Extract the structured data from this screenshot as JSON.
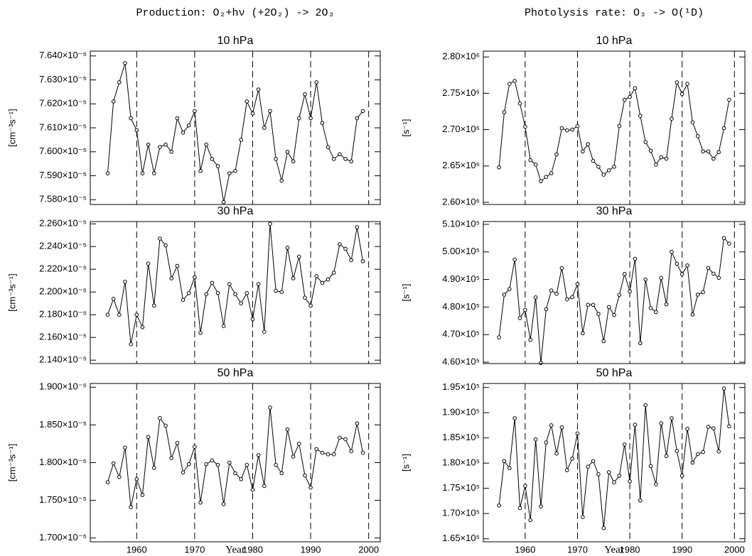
{
  "figure_titles": [
    "Production: O₂+hν (+2O₂) -> 2O₃",
    "Photolysis rate: O₃ -> O(¹D)"
  ],
  "chart_data": [
    {
      "type": "line",
      "title": "10 hPa",
      "ylabel": "[cm⁻³s⁻¹]",
      "color": "#000000",
      "grid": "dashed",
      "x": [
        1955,
        1956,
        1957,
        1958,
        1959,
        1960,
        1961,
        1962,
        1963,
        1964,
        1965,
        1966,
        1967,
        1968,
        1969,
        1970,
        1971,
        1972,
        1973,
        1974,
        1975,
        1976,
        1977,
        1978,
        1979,
        1980,
        1981,
        1982,
        1983,
        1984,
        1985,
        1986,
        1987,
        1988,
        1989,
        1990,
        1991,
        1992,
        1993,
        1994,
        1995,
        1996,
        1997,
        1998,
        1999
      ],
      "values": [
        7.591e-05,
        7.621e-05,
        7.629e-05,
        7.637e-05,
        7.614e-05,
        7.609e-05,
        7.591e-05,
        7.603e-05,
        7.591e-05,
        7.602e-05,
        7.603e-05,
        7.6e-05,
        7.614e-05,
        7.608e-05,
        7.611e-05,
        7.617e-05,
        7.592e-05,
        7.603e-05,
        7.597e-05,
        7.594e-05,
        7.579e-05,
        7.591e-05,
        7.592e-05,
        7.605e-05,
        7.621e-05,
        7.616e-05,
        7.626e-05,
        7.61e-05,
        7.617e-05,
        7.597e-05,
        7.588e-05,
        7.6e-05,
        7.596e-05,
        7.614e-05,
        7.624e-05,
        7.614e-05,
        7.629e-05,
        7.612e-05,
        7.602e-05,
        7.597e-05,
        7.599e-05,
        7.597e-05,
        7.596e-05,
        7.614e-05,
        7.617e-05
      ],
      "xlim": [
        1952,
        2002
      ],
      "xticks": [
        1960,
        1970,
        1980,
        1990,
        2000
      ],
      "ylim": [
        7.578e-05,
        7.642e-05
      ],
      "yticks": [
        {
          "value": 7.58e-05,
          "label": "7.580×10⁻⁵"
        },
        {
          "value": 7.59e-05,
          "label": "7.590×10⁻⁵"
        },
        {
          "value": 7.6e-05,
          "label": "7.600×10⁻⁵"
        },
        {
          "value": 7.61e-05,
          "label": "7.610×10⁻⁵"
        },
        {
          "value": 7.62e-05,
          "label": "7.620×10⁻⁵"
        },
        {
          "value": 7.63e-05,
          "label": "7.630×10⁻⁵"
        },
        {
          "value": 7.64e-05,
          "label": "7.640×10⁻⁵"
        }
      ]
    },
    {
      "type": "line",
      "title": "10 hPa",
      "ylabel": "[s⁻¹]",
      "color": "#000000",
      "grid": "dashed",
      "x": [
        1955,
        1956,
        1957,
        1958,
        1959,
        1960,
        1961,
        1962,
        1963,
        1964,
        1965,
        1966,
        1967,
        1968,
        1969,
        1970,
        1971,
        1972,
        1973,
        1974,
        1975,
        1976,
        1977,
        1978,
        1979,
        1980,
        1981,
        1982,
        1983,
        1984,
        1985,
        1986,
        1987,
        1988,
        1989,
        1990,
        1991,
        1992,
        1993,
        1994,
        1995,
        1996,
        1997,
        1998,
        1999
      ],
      "values": [
        2648000.0,
        2724000.0,
        2763000.0,
        2767000.0,
        2736000.0,
        2704000.0,
        2658000.0,
        2652000.0,
        2629000.0,
        2635000.0,
        2640000.0,
        2666000.0,
        2702000.0,
        2699000.0,
        2700000.0,
        2705000.0,
        2670000.0,
        2680000.0,
        2657000.0,
        2649000.0,
        2638000.0,
        2644000.0,
        2649000.0,
        2705000.0,
        2741000.0,
        2745000.0,
        2757000.0,
        2719000.0,
        2683000.0,
        2671000.0,
        2652000.0,
        2662000.0,
        2660000.0,
        2715000.0,
        2765000.0,
        2749000.0,
        2763000.0,
        2710000.0,
        2691000.0,
        2670000.0,
        2670000.0,
        2660000.0,
        2669000.0,
        2702000.0,
        2741000.0
      ],
      "xlim": [
        1952,
        2002
      ],
      "xticks": [
        1960,
        1970,
        1980,
        1990,
        2000
      ],
      "ylim": [
        2597000.0,
        2808000.0
      ],
      "yticks": [
        {
          "value": 2600000.0,
          "label": "2.60×10⁶"
        },
        {
          "value": 2650000.0,
          "label": "2.65×10⁶"
        },
        {
          "value": 2700000.0,
          "label": "2.70×10⁶"
        },
        {
          "value": 2750000.0,
          "label": "2.75×10⁶"
        },
        {
          "value": 2800000.0,
          "label": "2.80×10⁶"
        }
      ]
    },
    {
      "type": "line",
      "title": "30 hPa",
      "ylabel": "[cm⁻³s⁻¹]",
      "color": "#000000",
      "grid": "dashed",
      "x": [
        1955,
        1956,
        1957,
        1958,
        1959,
        1960,
        1961,
        1962,
        1963,
        1964,
        1965,
        1966,
        1967,
        1968,
        1969,
        1970,
        1971,
        1972,
        1973,
        1974,
        1975,
        1976,
        1977,
        1978,
        1979,
        1980,
        1981,
        1982,
        1983,
        1984,
        1985,
        1986,
        1987,
        1988,
        1989,
        1990,
        1991,
        1992,
        1993,
        1994,
        1995,
        1996,
        1997,
        1998,
        1999
      ],
      "values": [
        2.18e-05,
        2.194e-05,
        2.18e-05,
        2.209e-05,
        2.154e-05,
        2.18e-05,
        2.169e-05,
        2.225e-05,
        2.188e-05,
        2.247e-05,
        2.241e-05,
        2.212e-05,
        2.223e-05,
        2.193e-05,
        2.199e-05,
        2.213e-05,
        2.164e-05,
        2.198e-05,
        2.208e-05,
        2.199e-05,
        2.17e-05,
        2.207e-05,
        2.198e-05,
        2.19e-05,
        2.199e-05,
        2.176e-05,
        2.207e-05,
        2.165e-05,
        2.26e-05,
        2.201e-05,
        2.2e-05,
        2.239e-05,
        2.212e-05,
        2.231e-05,
        2.195e-05,
        2.188e-05,
        2.214e-05,
        2.208e-05,
        2.211e-05,
        2.217e-05,
        2.242e-05,
        2.238e-05,
        2.228e-05,
        2.257e-05,
        2.227e-05
      ],
      "xlim": [
        1952,
        2002
      ],
      "xticks": [
        1960,
        1970,
        1980,
        1990,
        2000
      ],
      "ylim": [
        2.137e-05,
        2.262e-05
      ],
      "yticks": [
        {
          "value": 2.14e-05,
          "label": "2.140×10⁻⁵"
        },
        {
          "value": 2.16e-05,
          "label": "2.160×10⁻⁵"
        },
        {
          "value": 2.18e-05,
          "label": "2.180×10⁻⁵"
        },
        {
          "value": 2.2e-05,
          "label": "2.200×10⁻⁵"
        },
        {
          "value": 2.22e-05,
          "label": "2.220×10⁻⁵"
        },
        {
          "value": 2.24e-05,
          "label": "2.240×10⁻⁵"
        },
        {
          "value": 2.26e-05,
          "label": "2.260×10⁻⁵"
        }
      ]
    },
    {
      "type": "line",
      "title": "30 hPa",
      "ylabel": "[s⁻¹]",
      "color": "#000000",
      "grid": "dashed",
      "x": [
        1955,
        1956,
        1957,
        1958,
        1959,
        1960,
        1961,
        1962,
        1963,
        1964,
        1965,
        1966,
        1967,
        1968,
        1969,
        1970,
        1971,
        1972,
        1973,
        1974,
        1975,
        1976,
        1977,
        1978,
        1979,
        1980,
        1981,
        1982,
        1983,
        1984,
        1985,
        1986,
        1987,
        1988,
        1989,
        1990,
        1991,
        1992,
        1993,
        1994,
        1995,
        1996,
        1997,
        1998,
        1999
      ],
      "values": [
        469000.0,
        484500.0,
        486500.0,
        497200.0,
        476000.0,
        478900.0,
        468100.0,
        483500.0,
        459700.0,
        479200.0,
        486000.0,
        484800.0,
        494100.0,
        482800.0,
        483600.0,
        488300.0,
        470500.0,
        480800.0,
        480800.0,
        477500.0,
        467600.0,
        480000.0,
        477100.0,
        484400.0,
        492000.0,
        485600.0,
        497500.0,
        466900.0,
        490000.0,
        479600.0,
        478200.0,
        490500.0,
        481000.0,
        500000.0,
        495700.0,
        491900.0,
        495100.0,
        477300.0,
        484500.0,
        485400.0,
        494200.0,
        492100.0,
        490600.0,
        505000.0,
        503000.0
      ],
      "xlim": [
        1952,
        2002
      ],
      "xticks": [
        1960,
        1970,
        1980,
        1990,
        2000
      ],
      "ylim": [
        459500.0,
        511000.0
      ],
      "yticks": [
        {
          "value": 460000.0,
          "label": "4.60×10⁵"
        },
        {
          "value": 470000.0,
          "label": "4.70×10⁵"
        },
        {
          "value": 480000.0,
          "label": "4.80×10⁵"
        },
        {
          "value": 490000.0,
          "label": "4.90×10⁵"
        },
        {
          "value": 500000.0,
          "label": "5.00×10⁵"
        },
        {
          "value": 510000.0,
          "label": "5.10×10⁵"
        }
      ]
    },
    {
      "type": "line",
      "title": "50 hPa",
      "ylabel": "[cm⁻³s⁻¹]",
      "xlabel": "Year",
      "color": "#000000",
      "grid": "dashed",
      "x": [
        1955,
        1956,
        1957,
        1958,
        1959,
        1960,
        1961,
        1962,
        1963,
        1964,
        1965,
        1966,
        1967,
        1968,
        1969,
        1970,
        1971,
        1972,
        1973,
        1974,
        1975,
        1976,
        1977,
        1978,
        1979,
        1980,
        1981,
        1982,
        1983,
        1984,
        1985,
        1986,
        1987,
        1988,
        1989,
        1990,
        1991,
        1992,
        1993,
        1994,
        1995,
        1996,
        1997,
        1998,
        1999
      ],
      "values": [
        1.774e-05,
        1.799e-05,
        1.781e-05,
        1.82e-05,
        1.741e-05,
        1.778e-05,
        1.757e-05,
        1.834e-05,
        1.793e-05,
        1.859e-05,
        1.849e-05,
        1.806e-05,
        1.826e-05,
        1.787e-05,
        1.798e-05,
        1.821e-05,
        1.747e-05,
        1.798e-05,
        1.803e-05,
        1.797e-05,
        1.745e-05,
        1.8e-05,
        1.786e-05,
        1.778e-05,
        1.797e-05,
        1.764e-05,
        1.81e-05,
        1.769e-05,
        1.873e-05,
        1.797e-05,
        1.786e-05,
        1.844e-05,
        1.808e-05,
        1.825e-05,
        1.783e-05,
        1.767e-05,
        1.818e-05,
        1.813e-05,
        1.811e-05,
        1.811e-05,
        1.833e-05,
        1.831e-05,
        1.815e-05,
        1.852e-05,
        1.813e-05
      ],
      "xlim": [
        1952,
        2002
      ],
      "xticks": [
        1960,
        1970,
        1980,
        1990,
        2000
      ],
      "ylim": [
        1.695e-05,
        1.905e-05
      ],
      "yticks": [
        {
          "value": 1.7e-05,
          "label": "1.700×10⁻⁵"
        },
        {
          "value": 1.75e-05,
          "label": "1.750×10⁻⁵"
        },
        {
          "value": 1.8e-05,
          "label": "1.800×10⁻⁵"
        },
        {
          "value": 1.85e-05,
          "label": "1.850×10⁻⁵"
        },
        {
          "value": 1.9e-05,
          "label": "1.900×10⁻⁵"
        }
      ]
    },
    {
      "type": "line",
      "title": "50 hPa",
      "ylabel": "[s⁻¹]",
      "xlabel": "Year",
      "color": "#000000",
      "grid": "dashed",
      "x": [
        1955,
        1956,
        1957,
        1958,
        1959,
        1960,
        1961,
        1962,
        1963,
        1964,
        1965,
        1966,
        1967,
        1968,
        1969,
        1970,
        1971,
        1972,
        1973,
        1974,
        1975,
        1976,
        1977,
        1978,
        1979,
        1980,
        1981,
        1982,
        1983,
        1984,
        1985,
        1986,
        1987,
        1988,
        1989,
        1990,
        1991,
        1992,
        1993,
        1994,
        1995,
        1996,
        1997,
        1998,
        1999
      ],
      "values": [
        171600.0,
        180400.0,
        179000.0,
        188900.0,
        171100.0,
        175500.0,
        168700.0,
        184700.0,
        171400.0,
        184100.0,
        187500.0,
        181900.0,
        187100.0,
        178600.0,
        180900.0,
        185900.0,
        169300.0,
        179300.0,
        180400.0,
        177800.0,
        167100.0,
        178200.0,
        176200.0,
        177500.0,
        183700.0,
        176400.0,
        187600.0,
        172600.0,
        191500.0,
        179400.0,
        175800.0,
        187900.0,
        181400.0,
        188900.0,
        182400.0,
        177500.0,
        186800.0,
        180100.0,
        181800.0,
        182200.0,
        187200.0,
        186900.0,
        182300.0,
        194800.0,
        187300.0
      ],
      "xlim": [
        1952,
        2002
      ],
      "xticks": [
        1960,
        1970,
        1980,
        1990,
        2000
      ],
      "ylim": [
        164400.0,
        195800.0
      ],
      "yticks": [
        {
          "value": 165000.0,
          "label": "1.65×10⁵"
        },
        {
          "value": 170000.0,
          "label": "1.70×10⁵"
        },
        {
          "value": 175000.0,
          "label": "1.75×10⁵"
        },
        {
          "value": 180000.0,
          "label": "1.80×10⁵"
        },
        {
          "value": 185000.0,
          "label": "1.85×10⁵"
        },
        {
          "value": 190000.0,
          "label": "1.90×10⁵"
        },
        {
          "value": 195000.0,
          "label": "1.95×10⁵"
        }
      ]
    }
  ]
}
